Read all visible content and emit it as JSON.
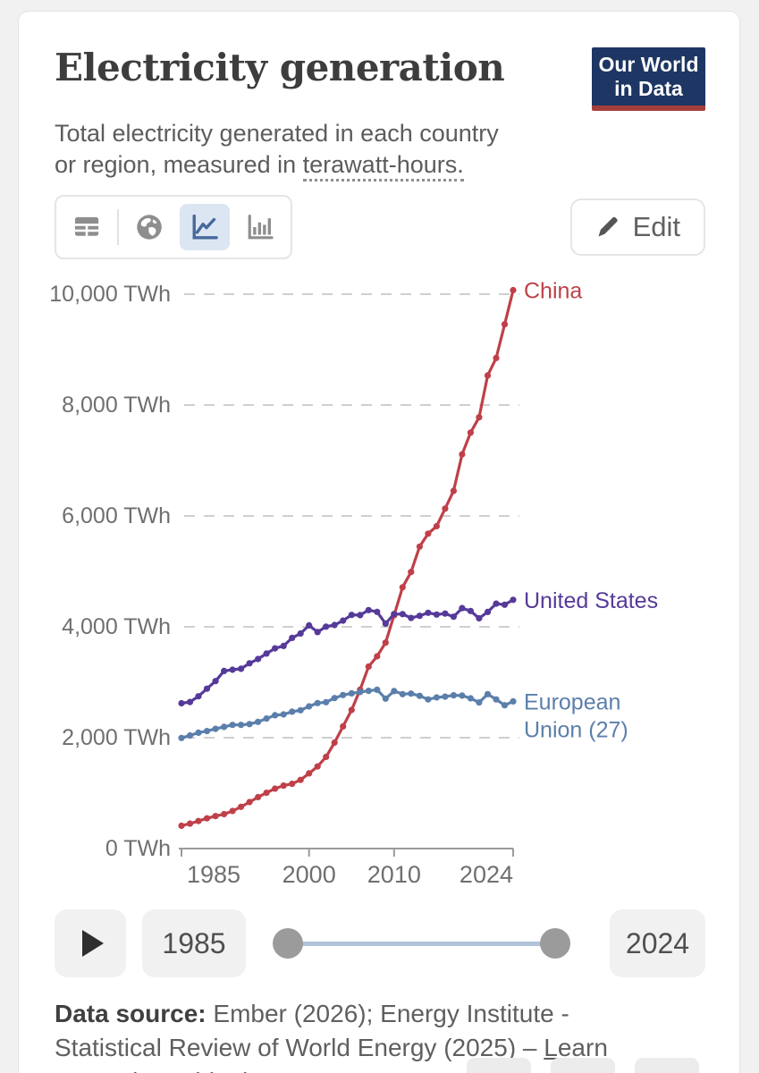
{
  "header": {
    "title": "Electricity generation",
    "subtitle_prefix": "Total electricity generated in each country or region, measured in ",
    "subtitle_underlined": "terawatt-hours.",
    "logo": {
      "line1": "Our World",
      "line2": "in Data",
      "bg_color": "#1d3663",
      "accent_color": "#a43e3c"
    }
  },
  "toolbar": {
    "icons": [
      {
        "name": "table-icon",
        "selected": false
      },
      {
        "name": "globe-map-icon",
        "selected": false
      },
      {
        "name": "line-chart-icon",
        "selected": true
      },
      {
        "name": "bar-chart-icon",
        "selected": false
      }
    ],
    "selected_bg": "#dce6f2",
    "icon_gray": "#8e8e8e",
    "icon_blue": "#47699b",
    "edit_label": "Edit"
  },
  "chart_data": {
    "type": "line",
    "title": "Electricity generation",
    "unit": "TWh",
    "grid": "horizontal-dashed",
    "legend": "end-of-line-labels",
    "xlim": [
      1985,
      2024
    ],
    "ylim": [
      0,
      10000
    ],
    "x": [
      1985,
      1986,
      1987,
      1988,
      1989,
      1990,
      1991,
      1992,
      1993,
      1994,
      1995,
      1996,
      1997,
      1998,
      1999,
      2000,
      2001,
      2002,
      2003,
      2004,
      2005,
      2006,
      2007,
      2008,
      2009,
      2010,
      2011,
      2012,
      2013,
      2014,
      2015,
      2016,
      2017,
      2018,
      2019,
      2020,
      2021,
      2022,
      2023,
      2024
    ],
    "xticks": [
      1985,
      2000,
      2010,
      2024
    ],
    "yticks": [
      {
        "value": 0,
        "label": "0 TWh"
      },
      {
        "value": 2000,
        "label": "2,000 TWh"
      },
      {
        "value": 4000,
        "label": "4,000 TWh"
      },
      {
        "value": 6000,
        "label": "6,000 TWh"
      },
      {
        "value": 8000,
        "label": "8,000 TWh"
      },
      {
        "value": 10000,
        "label": "10,000 TWh"
      }
    ],
    "series": [
      {
        "name": "China",
        "label_lines": [
          "China"
        ],
        "color": "#bf4049",
        "values": [
          411,
          450,
          497,
          545,
          585,
          621,
          678,
          754,
          839,
          928,
          1007,
          1081,
          1136,
          1167,
          1239,
          1356,
          1481,
          1654,
          1911,
          2203,
          2500,
          2866,
          3282,
          3467,
          3715,
          4207,
          4713,
          4988,
          5447,
          5680,
          5815,
          6133,
          6453,
          7111,
          7504,
          7779,
          8534,
          8849,
          9456,
          10073
        ]
      },
      {
        "name": "United States",
        "label_lines": [
          "United States"
        ],
        "color": "#563a99",
        "values": [
          2621,
          2643,
          2747,
          2884,
          3021,
          3203,
          3226,
          3243,
          3342,
          3420,
          3517,
          3611,
          3655,
          3800,
          3879,
          4026,
          3905,
          4004,
          4033,
          4111,
          4215,
          4211,
          4301,
          4269,
          4058,
          4231,
          4229,
          4160,
          4198,
          4253,
          4221,
          4238,
          4182,
          4337,
          4286,
          4154,
          4267,
          4418,
          4399,
          4487
        ]
      },
      {
        "name": "European Union (27)",
        "label_lines": [
          "European",
          "Union (27)"
        ],
        "color": "#5b7fab",
        "values": [
          1995,
          2040,
          2090,
          2120,
          2160,
          2195,
          2230,
          2230,
          2245,
          2285,
          2345,
          2405,
          2420,
          2470,
          2495,
          2565,
          2625,
          2640,
          2715,
          2770,
          2800,
          2825,
          2845,
          2865,
          2705,
          2840,
          2785,
          2795,
          2755,
          2690,
          2725,
          2740,
          2765,
          2760,
          2710,
          2635,
          2785,
          2690,
          2585,
          2655
        ]
      }
    ],
    "axis_color": "#9a9a9a",
    "gridline_color": "#cfcfcf",
    "tick_label_color": "#6f6f6f"
  },
  "timeline": {
    "start_year": "1985",
    "end_year": "2024"
  },
  "footer": {
    "source_label": "Data source:",
    "source_text": " Ember (2026); Energy Institute - Statistical Review of World Energy (2025) – ",
    "link_text": "Learn more about this data"
  }
}
